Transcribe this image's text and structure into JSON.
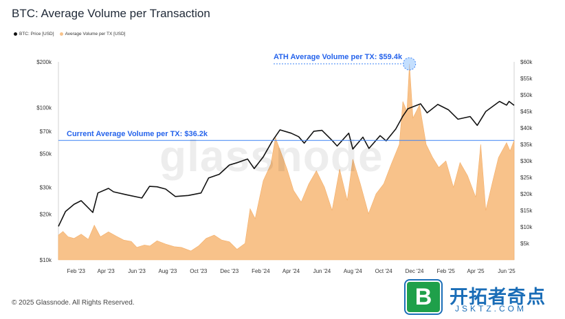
{
  "title": "BTC: Average Volume per Transaction",
  "legend": [
    {
      "label": "BTC: Price [USD]",
      "color": "#111111"
    },
    {
      "label": "Average Volume per TX [USD]",
      "color": "#f8c28a"
    }
  ],
  "watermark": "glassnode",
  "copyright": "© 2025 Glassnode. All Rights Reserved.",
  "brand": {
    "logo_letter": "B",
    "name": "开拓者奇点",
    "url": "JSKTZ.COM"
  },
  "chart_data": {
    "type": "line",
    "title": "BTC: Average Volume per Transaction",
    "x_tick_labels": [
      "Feb '23",
      "Apr '23",
      "Jun '23",
      "Aug '23",
      "Oct '23",
      "Dec '23",
      "Feb '24",
      "Apr '24",
      "Jun '24",
      "Aug '24",
      "Oct '24",
      "Dec '24",
      "Feb '25",
      "Apr '25",
      "Jun '25"
    ],
    "x_range": [
      "2023-01-01",
      "2025-06-20"
    ],
    "left_axis": {
      "scale": "log",
      "ylim": [
        10000,
        200000
      ],
      "ticks": [
        "$10k",
        "$20k",
        "$30k",
        "$50k",
        "$70k",
        "$100k",
        "$200k"
      ],
      "tick_values": [
        10000,
        20000,
        30000,
        50000,
        70000,
        100000,
        200000
      ]
    },
    "right_axis": {
      "scale": "linear",
      "ylim": [
        0,
        60000
      ],
      "ticks": [
        "$5k",
        "$10k",
        "$15k",
        "$20k",
        "$25k",
        "$30k",
        "$35k",
        "$40k",
        "$45k",
        "$50k",
        "$55k",
        "$60k"
      ],
      "tick_values": [
        5000,
        10000,
        15000,
        20000,
        25000,
        30000,
        35000,
        40000,
        45000,
        50000,
        55000,
        60000
      ]
    },
    "series": [
      {
        "name": "BTC: Price [USD]",
        "axis": "left",
        "color": "#111111",
        "points": [
          [
            "2023-01-01",
            16600
          ],
          [
            "2023-01-15",
            20800
          ],
          [
            "2023-02-01",
            23200
          ],
          [
            "2023-02-15",
            24500
          ],
          [
            "2023-03-10",
            20500
          ],
          [
            "2023-03-20",
            27500
          ],
          [
            "2023-04-10",
            29500
          ],
          [
            "2023-04-20",
            28000
          ],
          [
            "2023-05-15",
            26800
          ],
          [
            "2023-06-15",
            25500
          ],
          [
            "2023-06-30",
            30400
          ],
          [
            "2023-07-15",
            30200
          ],
          [
            "2023-08-01",
            29200
          ],
          [
            "2023-08-20",
            26100
          ],
          [
            "2023-09-15",
            26500
          ],
          [
            "2023-10-10",
            27500
          ],
          [
            "2023-10-25",
            34500
          ],
          [
            "2023-11-15",
            36500
          ],
          [
            "2023-12-05",
            42000
          ],
          [
            "2023-12-20",
            43500
          ],
          [
            "2024-01-10",
            46000
          ],
          [
            "2024-01-23",
            39800
          ],
          [
            "2024-02-10",
            47500
          ],
          [
            "2024-02-28",
            60500
          ],
          [
            "2024-03-14",
            71500
          ],
          [
            "2024-04-05",
            68000
          ],
          [
            "2024-04-20",
            64500
          ],
          [
            "2024-05-01",
            58500
          ],
          [
            "2024-05-20",
            70000
          ],
          [
            "2024-06-05",
            71000
          ],
          [
            "2024-06-25",
            61000
          ],
          [
            "2024-07-05",
            56000
          ],
          [
            "2024-07-28",
            68000
          ],
          [
            "2024-08-05",
            53500
          ],
          [
            "2024-08-25",
            64000
          ],
          [
            "2024-09-06",
            54000
          ],
          [
            "2024-09-28",
            65500
          ],
          [
            "2024-10-10",
            60500
          ],
          [
            "2024-10-29",
            72500
          ],
          [
            "2024-11-12",
            88000
          ],
          [
            "2024-11-22",
            98500
          ],
          [
            "2024-12-17",
            106000
          ],
          [
            "2024-12-30",
            92500
          ],
          [
            "2025-01-20",
            105000
          ],
          [
            "2025-02-10",
            97000
          ],
          [
            "2025-03-01",
            84000
          ],
          [
            "2025-03-25",
            87500
          ],
          [
            "2025-04-08",
            76500
          ],
          [
            "2025-04-25",
            94500
          ],
          [
            "2025-05-22",
            110000
          ],
          [
            "2025-06-05",
            104000
          ],
          [
            "2025-06-10",
            110000
          ],
          [
            "2025-06-20",
            103500
          ]
        ]
      },
      {
        "name": "Average Volume per TX [USD]",
        "axis": "right",
        "color": "#f8c28a",
        "points": [
          [
            "2023-01-01",
            7500
          ],
          [
            "2023-01-10",
            8600
          ],
          [
            "2023-01-20",
            7000
          ],
          [
            "2023-02-01",
            6500
          ],
          [
            "2023-02-15",
            7800
          ],
          [
            "2023-03-01",
            6200
          ],
          [
            "2023-03-13",
            10500
          ],
          [
            "2023-03-25",
            7000
          ],
          [
            "2023-04-10",
            8500
          ],
          [
            "2023-04-25",
            7200
          ],
          [
            "2023-05-10",
            6000
          ],
          [
            "2023-05-25",
            5600
          ],
          [
            "2023-06-05",
            3800
          ],
          [
            "2023-06-20",
            4500
          ],
          [
            "2023-07-01",
            4200
          ],
          [
            "2023-07-15",
            5800
          ],
          [
            "2023-08-01",
            4800
          ],
          [
            "2023-08-18",
            4000
          ],
          [
            "2023-09-01",
            3800
          ],
          [
            "2023-09-20",
            2700
          ],
          [
            "2023-10-05",
            4200
          ],
          [
            "2023-10-20",
            6500
          ],
          [
            "2023-11-05",
            7500
          ],
          [
            "2023-11-20",
            6000
          ],
          [
            "2023-12-05",
            5500
          ],
          [
            "2023-12-20",
            3200
          ],
          [
            "2024-01-05",
            5000
          ],
          [
            "2024-01-15",
            15500
          ],
          [
            "2024-01-25",
            12500
          ],
          [
            "2024-02-10",
            24000
          ],
          [
            "2024-02-25",
            29000
          ],
          [
            "2024-03-05",
            37000
          ],
          [
            "2024-03-15",
            33000
          ],
          [
            "2024-03-28",
            27500
          ],
          [
            "2024-04-10",
            21000
          ],
          [
            "2024-04-25",
            17500
          ],
          [
            "2024-05-10",
            23000
          ],
          [
            "2024-05-25",
            27000
          ],
          [
            "2024-06-10",
            22000
          ],
          [
            "2024-06-25",
            15000
          ],
          [
            "2024-07-10",
            27500
          ],
          [
            "2024-07-25",
            18000
          ],
          [
            "2024-08-05",
            30500
          ],
          [
            "2024-08-20",
            23000
          ],
          [
            "2024-09-05",
            14000
          ],
          [
            "2024-09-20",
            20000
          ],
          [
            "2024-10-05",
            23000
          ],
          [
            "2024-10-20",
            29000
          ],
          [
            "2024-11-05",
            35000
          ],
          [
            "2024-11-12",
            48000
          ],
          [
            "2024-11-20",
            45000
          ],
          [
            "2024-11-25",
            59400
          ],
          [
            "2024-12-02",
            43000
          ],
          [
            "2024-12-15",
            47000
          ],
          [
            "2024-12-28",
            35000
          ],
          [
            "2025-01-10",
            31000
          ],
          [
            "2025-01-22",
            28000
          ],
          [
            "2025-02-05",
            30000
          ],
          [
            "2025-02-20",
            22000
          ],
          [
            "2025-03-05",
            29500
          ],
          [
            "2025-03-20",
            25500
          ],
          [
            "2025-04-05",
            19000
          ],
          [
            "2025-04-15",
            35000
          ],
          [
            "2025-04-25",
            15000
          ],
          [
            "2025-05-08",
            23500
          ],
          [
            "2025-05-20",
            31000
          ],
          [
            "2025-06-05",
            35500
          ],
          [
            "2025-06-12",
            33000
          ],
          [
            "2025-06-20",
            36200
          ]
        ]
      }
    ],
    "annotations": [
      {
        "text": "ATH Average Volume per TX: $59.4k",
        "value": 59400,
        "date": "2024-11-25",
        "axis": "right"
      },
      {
        "text": "Current Average Volume per TX: $36.2k",
        "value": 36200,
        "axis": "right"
      }
    ],
    "grid": false,
    "legend_position": "top-left"
  }
}
